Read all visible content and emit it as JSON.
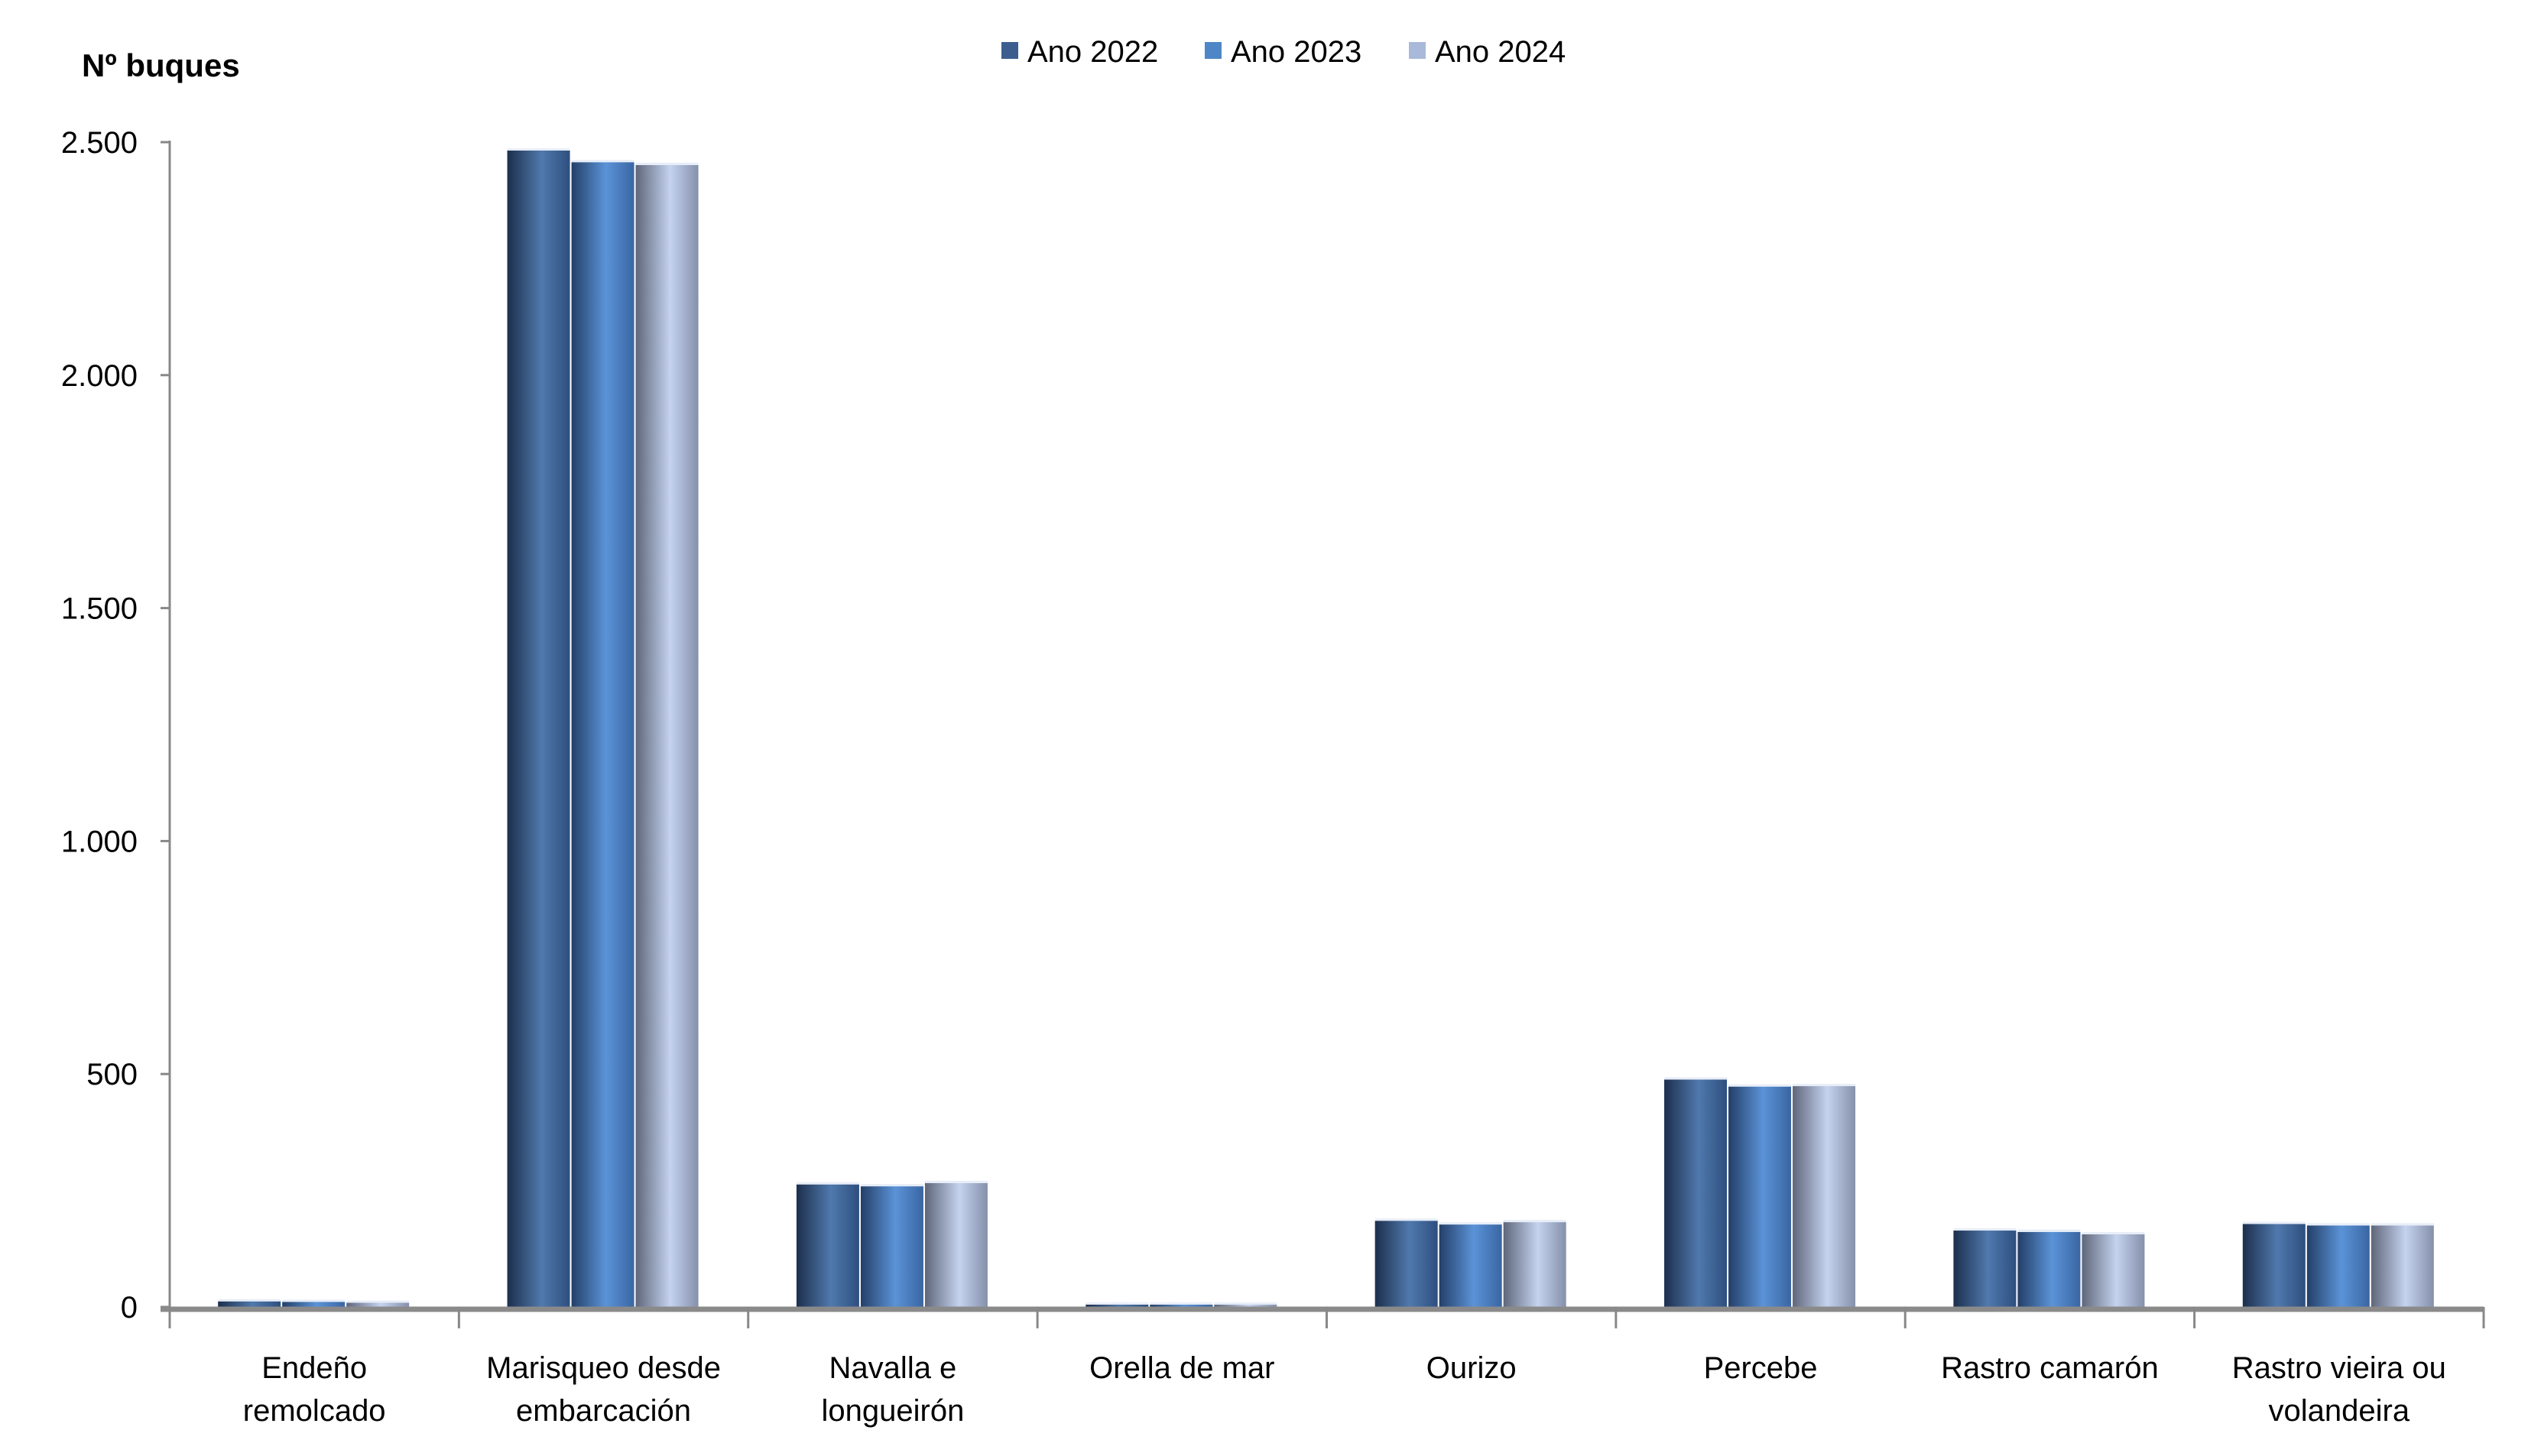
{
  "chart_data": {
    "type": "bar",
    "title": "",
    "ylabel": "Nº  buques",
    "xlabel": "",
    "ylim": [
      0,
      2500
    ],
    "yticks": [
      0,
      500,
      1000,
      1500,
      2000,
      2500
    ],
    "ytick_labels": [
      "0",
      "500",
      "1.000",
      "1.500",
      "2.000",
      "2.500"
    ],
    "grid": false,
    "legend_position": "top-center",
    "categories": [
      [
        "Endeño",
        "remolcado"
      ],
      [
        "Marisqueo desde",
        "embarcación"
      ],
      [
        "Navalla e",
        "longueirón"
      ],
      [
        "Orella de mar"
      ],
      [
        "Ourizo"
      ],
      [
        "Percebe"
      ],
      [
        "Rastro camarón"
      ],
      [
        "Rastro vieira ou",
        "volandeira"
      ]
    ],
    "series": [
      {
        "name": "Ano 2022",
        "color": "#3b5e8f",
        "values": [
          12,
          2482,
          263,
          5,
          185,
          488,
          164,
          178
        ]
      },
      {
        "name": "Ano 2023",
        "color": "#4f86c6",
        "values": [
          11,
          2457,
          259,
          5,
          177,
          473,
          161,
          175
        ]
      },
      {
        "name": "Ano 2024",
        "color": "#a9b9d9",
        "values": [
          9,
          2451,
          266,
          5,
          182,
          474,
          156,
          175
        ]
      }
    ]
  }
}
